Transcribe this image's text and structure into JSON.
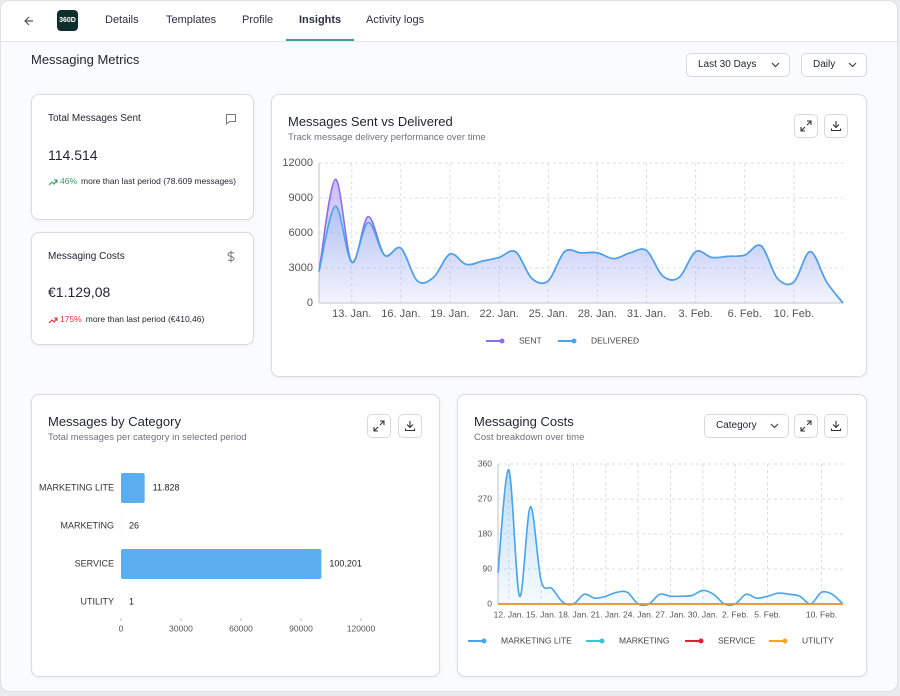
{
  "nav": {
    "logo": "360D",
    "tabs": [
      "Details",
      "Templates",
      "Profile",
      "Insights",
      "Activity logs"
    ],
    "active_tab": 3
  },
  "header": {
    "title": "Messaging Metrics",
    "filters": [
      "Last 30 Days",
      "Daily"
    ]
  },
  "cards": [
    {
      "title": "Total Messages Sent",
      "value": "114.514",
      "change": "46%",
      "color": "#2e9e5b",
      "note": "more than last period (78.609 messages)"
    },
    {
      "title": "Messaging Costs",
      "value": "€1.129,08",
      "change": "175%",
      "color": "#e0303a",
      "note": "more than last period (€410,46)"
    }
  ],
  "chart_data": [
    {
      "type": "line",
      "title": "Messages Sent vs Delivered",
      "subtitle": "Track message delivery performance over time",
      "categories": [
        null,
        null,
        "13. Jan.",
        null,
        null,
        "16. Jan.",
        null,
        null,
        "19. Jan.",
        null,
        null,
        "22. Jan.",
        null,
        null,
        "25. Jan.",
        null,
        null,
        "28. Jan.",
        null,
        null,
        "31. Jan.",
        null,
        null,
        "3. Feb.",
        null,
        null,
        "6. Feb.",
        null,
        null,
        "10. Feb.",
        null,
        null,
        null
      ],
      "series": [
        {
          "name": "SENT",
          "color": "#8a6fe8",
          "values": [
            2700,
            10600,
            3500,
            7400,
            4100,
            4700,
            1900,
            2200,
            4200,
            3300,
            3600,
            3900,
            4400,
            2100,
            1900,
            4400,
            4300,
            4300,
            3800,
            4300,
            4500,
            2300,
            2200,
            4400,
            3900,
            4000,
            4100,
            4900,
            2100,
            1800,
            4400,
            1800,
            0
          ]
        },
        {
          "name": "DELIVERED",
          "color": "#4aa3e8",
          "values": [
            2700,
            8300,
            3500,
            6900,
            4100,
            4700,
            1900,
            2200,
            4200,
            3300,
            3600,
            3900,
            4400,
            2100,
            1900,
            4400,
            4300,
            4300,
            3800,
            4300,
            4500,
            2300,
            2200,
            4400,
            3900,
            4000,
            4100,
            4900,
            2100,
            1800,
            4400,
            1800,
            0
          ]
        }
      ],
      "ylim": [
        0,
        12000
      ],
      "yticks": [
        0,
        3000,
        6000,
        9000,
        12000
      ],
      "grid": true
    },
    {
      "type": "bar",
      "title": "Messages by Category",
      "subtitle": "Total messages per category in selected period",
      "categories": [
        "MARKETING LITE",
        "MARKETING",
        "SERVICE",
        "UTILITY"
      ],
      "values": [
        11828,
        26,
        100201,
        1
      ],
      "value_labels": [
        "11.828",
        "26",
        "100.201",
        "1"
      ],
      "color": "#5aaef0",
      "xlim": [
        0,
        120000
      ],
      "xticks": [
        0,
        30000,
        60000,
        90000,
        120000
      ]
    },
    {
      "type": "line",
      "title": "Messaging Costs",
      "subtitle": "Cost breakdown over time",
      "filter": "Category",
      "categories": [
        null,
        "12. Jan.",
        null,
        null,
        "15. Jan.",
        null,
        null,
        "18. Jan.",
        null,
        null,
        "21. Jan.",
        null,
        null,
        "24. Jan.",
        null,
        null,
        "27. Jan.",
        null,
        null,
        "30. Jan.",
        null,
        null,
        "2. Feb.",
        null,
        null,
        "5. Feb.",
        null,
        null,
        null,
        null,
        "10. Feb.",
        null,
        null
      ],
      "series": [
        {
          "name": "MARKETING LITE",
          "color": "#4aa3e8",
          "values": [
            80,
            345,
            20,
            250,
            60,
            40,
            5,
            0,
            25,
            15,
            20,
            30,
            30,
            0,
            0,
            25,
            20,
            20,
            22,
            35,
            25,
            0,
            0,
            25,
            15,
            20,
            28,
            25,
            20,
            0,
            30,
            25,
            0
          ]
        },
        {
          "name": "MARKETING",
          "color": "#3bc4d6",
          "values": [
            0,
            0,
            0,
            0,
            0,
            0,
            0,
            0,
            0,
            0,
            0,
            0,
            0,
            0,
            0,
            0,
            0,
            0,
            0,
            0,
            0,
            0,
            0,
            0,
            0,
            0,
            0,
            0,
            0,
            0,
            0,
            0,
            0
          ]
        },
        {
          "name": "SERVICE",
          "color": "#e0202f",
          "values": [
            0,
            0,
            0,
            0,
            0,
            0,
            0,
            0,
            0,
            0,
            0,
            0,
            0,
            0,
            0,
            0,
            0,
            0,
            0,
            0,
            0,
            0,
            0,
            0,
            0,
            0,
            0,
            0,
            0,
            0,
            0,
            0,
            0
          ]
        },
        {
          "name": "UTILITY",
          "color": "#f5a623",
          "values": [
            0,
            0,
            0,
            0,
            0,
            0,
            0,
            0,
            0,
            0,
            0,
            0,
            0,
            0,
            0,
            0,
            0,
            0,
            0,
            0,
            0,
            0,
            0,
            0,
            0,
            0,
            0,
            0,
            0,
            0,
            0,
            0,
            0
          ]
        }
      ],
      "ylim": [
        0,
        360
      ],
      "yticks": [
        0,
        90,
        180,
        270,
        360
      ],
      "grid": true
    }
  ]
}
